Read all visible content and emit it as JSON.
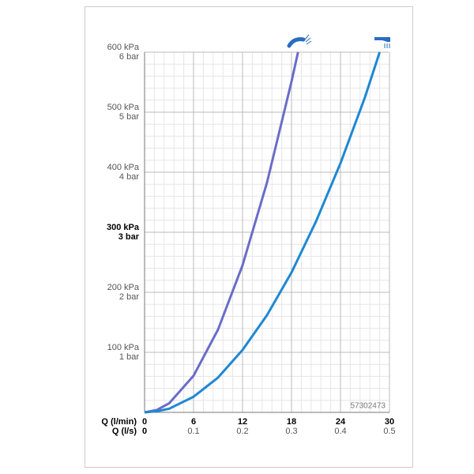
{
  "chart_data": {
    "type": "line",
    "xlabel": "Q (l/min)",
    "x2label": "Q (l/s)",
    "xlim": [
      0,
      30
    ],
    "xticks": [
      0,
      6,
      12,
      18,
      24,
      30
    ],
    "x2lim": [
      0,
      0.5
    ],
    "x2ticks": [
      0,
      0.1,
      0.2,
      0.3,
      0.4,
      0.5
    ],
    "ylim": [
      0,
      600
    ],
    "yticks": [
      {
        "value": 100,
        "label": "100 kPa"
      },
      {
        "value": 200,
        "label": "200 kPa"
      },
      {
        "value": 300,
        "label": "300 kPa"
      },
      {
        "value": 400,
        "label": "400 kPa"
      },
      {
        "value": 500,
        "label": "500 kPa"
      },
      {
        "value": 600,
        "label": "600 kPa"
      }
    ],
    "y2lim": [
      0,
      6
    ],
    "y2ticks": [
      {
        "value": 1,
        "label": "1 bar"
      },
      {
        "value": 2,
        "label": "2 bar"
      },
      {
        "value": 3,
        "label": "3 bar"
      },
      {
        "value": 4,
        "label": "4 bar"
      },
      {
        "value": 5,
        "label": "5 bar"
      },
      {
        "value": 6,
        "label": "6 bar"
      }
    ],
    "highlight_ytick": 300,
    "grid": true,
    "code": "57302473",
    "series": [
      {
        "color": "#6a6dc8",
        "x": [
          0,
          1.5,
          3,
          6,
          9,
          12,
          15,
          18,
          18.8
        ],
        "values": [
          0,
          4,
          15,
          61,
          138,
          245,
          383,
          551,
          600
        ]
      },
      {
        "color": "#1e88d4",
        "x": [
          0,
          1.5,
          3,
          6,
          9,
          12,
          15,
          18,
          21,
          24,
          27,
          28.8
        ],
        "values": [
          0,
          2,
          6,
          26,
          58,
          104,
          162,
          233,
          318,
          415,
          525,
          600
        ]
      }
    ]
  }
}
